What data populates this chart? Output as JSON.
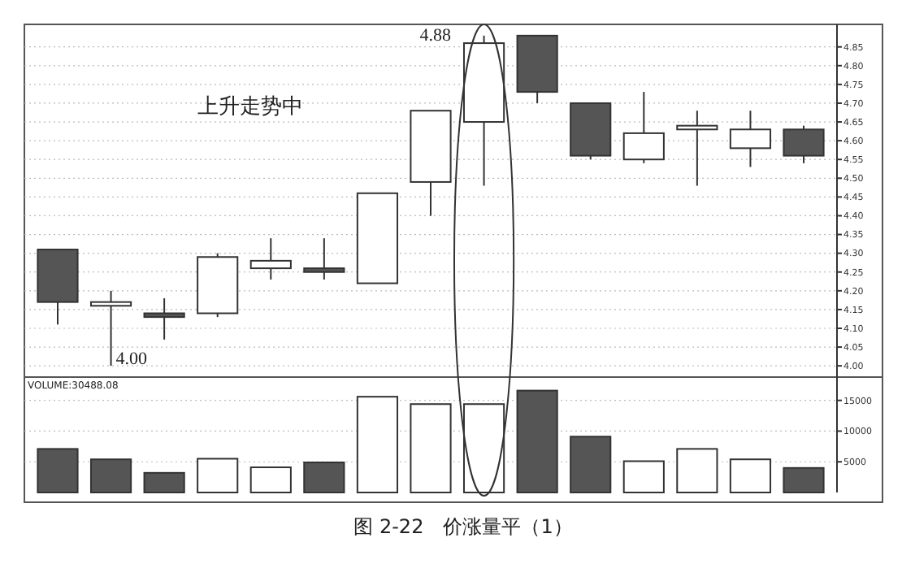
{
  "chart_data": [
    {
      "type": "candlestick",
      "categories": [
        null,
        null,
        null,
        null,
        null,
        null,
        null,
        null,
        null,
        null,
        null,
        null,
        null,
        null,
        null
      ],
      "ohlc": [
        [
          4.31,
          4.31,
          4.11,
          4.17
        ],
        [
          4.16,
          4.2,
          4.0,
          4.17
        ],
        [
          4.14,
          4.18,
          4.07,
          4.13
        ],
        [
          4.14,
          4.3,
          4.13,
          4.29
        ],
        [
          4.26,
          4.34,
          4.23,
          4.28
        ],
        [
          4.26,
          4.34,
          4.23,
          4.25
        ],
        [
          4.22,
          4.46,
          4.22,
          4.46
        ],
        [
          4.49,
          4.68,
          4.4,
          4.68
        ],
        [
          4.65,
          4.88,
          4.48,
          4.86
        ],
        [
          4.88,
          4.88,
          4.7,
          4.73
        ],
        [
          4.7,
          4.7,
          4.55,
          4.56
        ],
        [
          4.55,
          4.73,
          4.54,
          4.62
        ],
        [
          4.63,
          4.68,
          4.48,
          4.64
        ],
        [
          4.58,
          4.68,
          4.53,
          4.63
        ],
        [
          4.63,
          4.64,
          4.54,
          4.56
        ]
      ],
      "colors": [
        "#555555",
        "#ffffff",
        "#555555",
        "#ffffff",
        "#ffffff",
        "#555555",
        "#ffffff",
        "#ffffff",
        "#ffffff",
        "#555555",
        "#555555",
        "#ffffff",
        "#ffffff",
        "#ffffff",
        "#555555"
      ],
      "ylim": [
        3.97,
        4.91
      ],
      "yticks": [
        {
          "value": 4.0,
          "label": "4.00"
        },
        {
          "value": 4.05,
          "label": "4.05"
        },
        {
          "value": 4.1,
          "label": "4.10"
        },
        {
          "value": 4.15,
          "label": "4.15"
        },
        {
          "value": 4.2,
          "label": "4.20"
        },
        {
          "value": 4.25,
          "label": "4.25"
        },
        {
          "value": 4.3,
          "label": "4.30"
        },
        {
          "value": 4.35,
          "label": "4.35"
        },
        {
          "value": 4.4,
          "label": "4.40"
        },
        {
          "value": 4.45,
          "label": "4.45"
        },
        {
          "value": 4.5,
          "label": "4.50"
        },
        {
          "value": 4.55,
          "label": "4.55"
        },
        {
          "value": 4.6,
          "label": "4.60"
        },
        {
          "value": 4.65,
          "label": "4.65"
        },
        {
          "value": 4.7,
          "label": "4.70"
        },
        {
          "value": 4.75,
          "label": "4.75"
        },
        {
          "value": 4.8,
          "label": "4.80"
        },
        {
          "value": 4.85,
          "label": "4.85"
        }
      ],
      "tick_labels": "y",
      "grid": "y",
      "annotations": [
        "上升走势中",
        "4.00",
        "4.88"
      ]
    },
    {
      "type": "bar",
      "title": "VOLUME:30488.08",
      "categories": [
        null,
        null,
        null,
        null,
        null,
        null,
        null,
        null,
        null,
        null,
        null,
        null,
        null,
        null,
        null
      ],
      "values": [
        7100,
        5400,
        3200,
        5500,
        4100,
        4900,
        15600,
        14400,
        14400,
        16600,
        9100,
        5100,
        7100,
        5400,
        4000
      ],
      "colors": [
        "#555555",
        "#555555",
        "#555555",
        "#ffffff",
        "#ffffff",
        "#555555",
        "#ffffff",
        "#ffffff",
        "#ffffff",
        "#555555",
        "#555555",
        "#ffffff",
        "#ffffff",
        "#ffffff",
        "#555555"
      ],
      "ylim": [
        0,
        18800
      ],
      "yticks": [
        5000,
        10000,
        15000
      ],
      "tick_labels": "y",
      "grid": "y",
      "annotations": [
        "图 2-22　价涨量平（1）"
      ]
    }
  ]
}
